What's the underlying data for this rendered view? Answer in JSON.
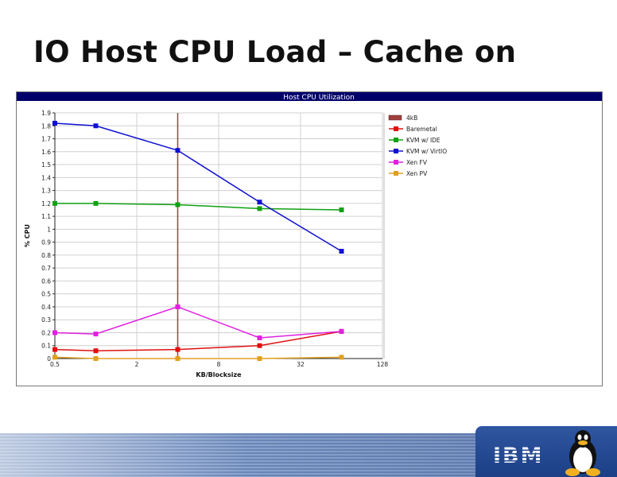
{
  "slide": {
    "title": "IO Host CPU Load – Cache on",
    "logo_text": "IBM"
  },
  "chart_data": {
    "type": "line",
    "title": "Host CPU Utilization",
    "xlabel": "KB/Blocksize",
    "ylabel": "% CPU",
    "x_scale": "log2",
    "xlim": [
      0.5,
      128
    ],
    "ylim": [
      0,
      1.9
    ],
    "x_ticks": [
      "0.5",
      "2",
      "8",
      "32",
      "128"
    ],
    "y_ticks": [
      "0",
      "0.1",
      "0.2",
      "0.3",
      "0.4",
      "0.5",
      "0.6",
      "0.7",
      "0.8",
      "0.9",
      "1",
      "1.1",
      "1.2",
      "1.3",
      "1.4",
      "1.5",
      "1.6",
      "1.7",
      "1.8",
      "1.9"
    ],
    "grid": true,
    "legend_position": "right",
    "x": [
      0.5,
      1,
      4,
      16,
      64
    ],
    "marker_line": {
      "name": "4kB",
      "x": 4,
      "color": "#a04040"
    },
    "series": [
      {
        "name": "Baremetal",
        "color": "#e01010",
        "values": [
          0.07,
          0.06,
          0.07,
          0.1,
          0.21
        ]
      },
      {
        "name": "KVM w/ IDE",
        "color": "#10a010",
        "values": [
          1.2,
          1.2,
          1.19,
          1.16,
          1.15
        ]
      },
      {
        "name": "KVM w/ VirtIO",
        "color": "#1010d0",
        "values": [
          1.82,
          1.8,
          1.61,
          1.21,
          0.83
        ]
      },
      {
        "name": "Xen FV",
        "color": "#e020e0",
        "values": [
          0.2,
          0.19,
          0.4,
          0.16,
          0.21
        ]
      },
      {
        "name": "Xen PV",
        "color": "#e0a020",
        "values": [
          0.01,
          0.0,
          0.0,
          0.0,
          0.01
        ]
      }
    ]
  }
}
